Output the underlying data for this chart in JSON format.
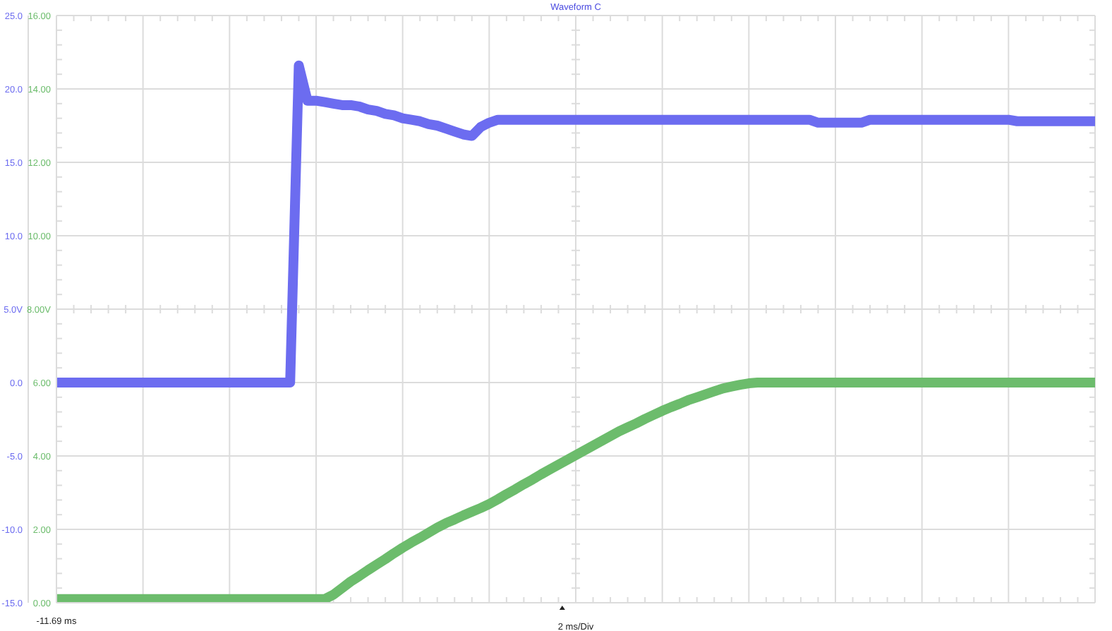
{
  "chart_data": {
    "type": "line",
    "title": "Waveform C",
    "xlabel": "2 ms/Div",
    "annotations": [
      "-11.69 ms"
    ],
    "tick_labels": "y",
    "categories": [
      null,
      null,
      null,
      null,
      null,
      null,
      null,
      null,
      null,
      null,
      null,
      null,
      null,
      null,
      null,
      null,
      null,
      null,
      null,
      null,
      null,
      null,
      null,
      null,
      null,
      null,
      null,
      null,
      null,
      null,
      null,
      null,
      null,
      null,
      null,
      null,
      null,
      null,
      null,
      null,
      null,
      null,
      null,
      null,
      null,
      null,
      null,
      null,
      null,
      null,
      null,
      null,
      null,
      null,
      null,
      null,
      null,
      null,
      null,
      null,
      null,
      null,
      null,
      null,
      null,
      null,
      null,
      null,
      null,
      null,
      null,
      null,
      null,
      null,
      null,
      null,
      null,
      null,
      null,
      null,
      null,
      null,
      null,
      null,
      null,
      null,
      null,
      null,
      null,
      null,
      null,
      null,
      null,
      null,
      null,
      null,
      null,
      null,
      null,
      null,
      null,
      null,
      null,
      null,
      null,
      null,
      null,
      null,
      null,
      null,
      null,
      null,
      null,
      null,
      null,
      null,
      null,
      null,
      null,
      null,
      null
    ],
    "ylim": [
      -15,
      25
    ],
    "yticks": [
      {
        "value": -15,
        "label": "-15.0"
      },
      {
        "value": -10,
        "label": "-10.0"
      },
      {
        "value": -5,
        "label": "-5.0"
      },
      {
        "value": 0,
        "label": "0.0"
      },
      {
        "value": 5,
        "label": "5.0V"
      },
      {
        "value": 10,
        "label": "10.0"
      },
      {
        "value": 15,
        "label": "15.0"
      },
      {
        "value": 20,
        "label": "20.0"
      },
      {
        "value": 25,
        "label": "25.0"
      }
    ],
    "y2lim": [
      0,
      16
    ],
    "y2ticks": [
      {
        "value": 0,
        "label": "0.00"
      },
      {
        "value": 2,
        "label": "2.00"
      },
      {
        "value": 4,
        "label": "4.00"
      },
      {
        "value": 6,
        "label": "6.00"
      },
      {
        "value": 8,
        "label": "8.00V"
      },
      {
        "value": 10,
        "label": "10.00"
      },
      {
        "value": 12,
        "label": "12.00"
      },
      {
        "value": 14,
        "label": "14.00"
      },
      {
        "value": 16,
        "label": "16.00"
      }
    ],
    "grid": true,
    "series": [
      {
        "color": "#6c6cf0",
        "values": [
          0,
          0,
          0,
          0,
          0,
          0,
          0,
          0,
          0,
          0,
          0,
          0,
          0,
          0,
          0,
          0,
          0,
          0,
          0,
          0,
          0,
          0,
          0,
          0,
          0,
          0,
          0,
          0,
          21.6,
          19.2,
          19.2,
          19.1,
          19.0,
          18.9,
          18.9,
          18.8,
          18.6,
          18.5,
          18.3,
          18.2,
          18.0,
          17.9,
          17.8,
          17.6,
          17.5,
          17.3,
          17.1,
          16.9,
          16.8,
          17.4,
          17.7,
          17.9,
          17.9,
          17.9,
          17.9,
          17.9,
          17.9,
          17.9,
          17.9,
          17.9,
          17.9,
          17.9,
          17.9,
          17.9,
          17.9,
          17.9,
          17.9,
          17.9,
          17.9,
          17.9,
          17.9,
          17.9,
          17.9,
          17.9,
          17.9,
          17.9,
          17.9,
          17.9,
          17.9,
          17.9,
          17.9,
          17.9,
          17.9,
          17.9,
          17.9,
          17.9,
          17.9,
          17.9,
          17.7,
          17.7,
          17.7,
          17.7,
          17.7,
          17.7,
          17.9,
          17.9,
          17.9,
          17.9,
          17.9,
          17.9,
          17.9,
          17.9,
          17.9,
          17.9,
          17.9,
          17.9,
          17.9,
          17.9,
          17.9,
          17.9,
          17.9,
          17.8,
          17.8,
          17.8,
          17.8,
          17.8,
          17.8,
          17.8,
          17.8,
          17.8,
          17.8
        ]
      },
      {
        "axis": "y2",
        "color": "#6cbc6c",
        "values": [
          0.1,
          0.1,
          0.1,
          0.1,
          0.1,
          0.1,
          0.1,
          0.1,
          0.1,
          0.1,
          0.1,
          0.1,
          0.1,
          0.1,
          0.1,
          0.1,
          0.1,
          0.1,
          0.1,
          0.1,
          0.1,
          0.1,
          0.1,
          0.1,
          0.1,
          0.1,
          0.1,
          0.1,
          0.1,
          0.1,
          0.1,
          0.1,
          0.22,
          0.4,
          0.58,
          0.73,
          0.89,
          1.04,
          1.19,
          1.35,
          1.5,
          1.64,
          1.77,
          1.91,
          2.05,
          2.17,
          2.27,
          2.38,
          2.48,
          2.58,
          2.69,
          2.82,
          2.96,
          3.09,
          3.23,
          3.36,
          3.5,
          3.63,
          3.76,
          3.89,
          4.02,
          4.15,
          4.28,
          4.41,
          4.54,
          4.67,
          4.78,
          4.89,
          5.01,
          5.12,
          5.23,
          5.33,
          5.42,
          5.52,
          5.6,
          5.68,
          5.76,
          5.84,
          5.89,
          5.94,
          5.98,
          6.0,
          6.0,
          6.0,
          6.0,
          6.0,
          6.0,
          6.0,
          6.0,
          6.0,
          6.0,
          6.0,
          6.0,
          6.0,
          6.0,
          6.0,
          6.0,
          6.0,
          6.0,
          6.0,
          6.0,
          6.0,
          6.0,
          6.0,
          6.0,
          6.0,
          6.0,
          6.0,
          6.0,
          6.0,
          6.0,
          6.0,
          6.0,
          6.0,
          6.0,
          6.0,
          6.0,
          6.0,
          6.0,
          6.0,
          6.0
        ]
      }
    ]
  }
}
